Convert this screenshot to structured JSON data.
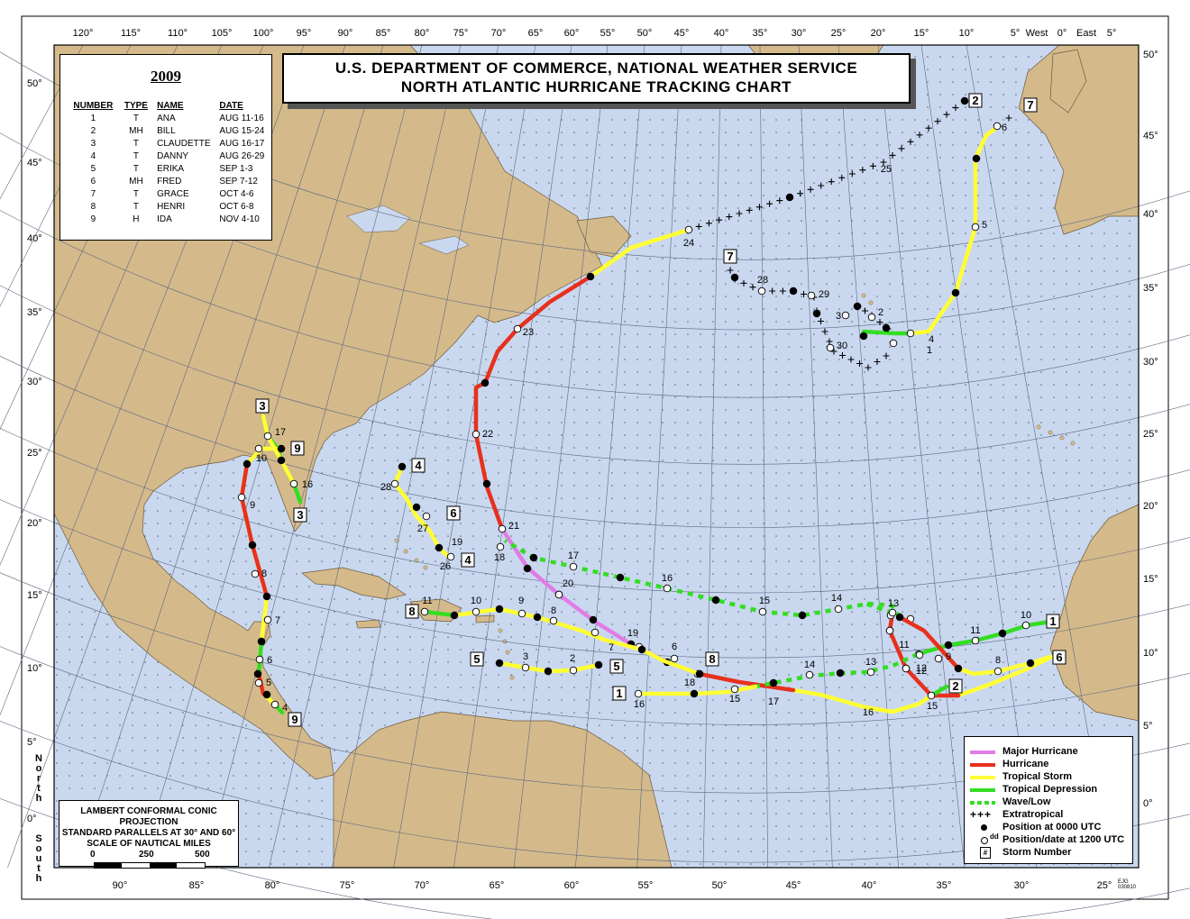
{
  "title": {
    "line1": "U.S. DEPARTMENT OF COMMERCE, NATIONAL WEATHER SERVICE",
    "line2": "NORTH ATLANTIC HURRICANE TRACKING CHART"
  },
  "season": {
    "year": "2009",
    "headers": [
      "NUMBER",
      "TYPE",
      "NAME",
      "DATE"
    ],
    "storms": [
      {
        "number": "1",
        "type": "T",
        "name": "ANA",
        "date": "AUG 11-16"
      },
      {
        "number": "2",
        "type": "MH",
        "name": "BILL",
        "date": "AUG 15-24"
      },
      {
        "number": "3",
        "type": "T",
        "name": "CLAUDETTE",
        "date": "AUG 16-17"
      },
      {
        "number": "4",
        "type": "T",
        "name": "DANNY",
        "date": "AUG 26-29"
      },
      {
        "number": "5",
        "type": "T",
        "name": "ERIKA",
        "date": "SEP 1-3"
      },
      {
        "number": "6",
        "type": "MH",
        "name": "FRED",
        "date": "SEP 7-12"
      },
      {
        "number": "7",
        "type": "T",
        "name": "GRACE",
        "date": "OCT 4-6"
      },
      {
        "number": "8",
        "type": "T",
        "name": "HENRI",
        "date": "OCT 6-8"
      },
      {
        "number": "9",
        "type": "H",
        "name": "IDA",
        "date": "NOV 4-10"
      }
    ]
  },
  "legend": {
    "major_hurricane": "Major Hurricane",
    "hurricane": "Hurricane",
    "tropical_storm": "Tropical Storm",
    "tropical_depression": "Tropical Depression",
    "wave_low": "Wave/Low",
    "extratropical": "Extratropical",
    "pos_0000": "Position at 0000 UTC",
    "pos_1200": "Position/date at 1200 UTC",
    "pos_1200_marker": "dd",
    "storm_number": "Storm Number",
    "storm_number_marker": "#"
  },
  "colors": {
    "major_hurricane": "#e07ce6",
    "hurricane": "#e8301c",
    "tropical_storm": "#ffff33",
    "tropical_depression": "#33dd22",
    "wave_low": "#33dd22",
    "extratropical": "#000000",
    "ocean": "#c9d8ef",
    "land": "#d4b98b",
    "lake": "#c9d8ef"
  },
  "projection": {
    "line1": "LAMBERT CONFORMAL CONIC PROJECTION",
    "line2": "STANDARD PARALLELS AT 30° AND 60°",
    "line3": "SCALE OF NAUTICAL MILES",
    "scale_ticks": [
      "0",
      "250",
      "500"
    ]
  },
  "lon_top": [
    "120°",
    "115°",
    "110°",
    "105°",
    "100°",
    "95°",
    "90°",
    "85°",
    "80°",
    "75°",
    "70°",
    "65°",
    "60°",
    "55°",
    "50°",
    "45°",
    "40°",
    "35°",
    "30°",
    "25°",
    "20°",
    "15°",
    "10°",
    "5°",
    "West",
    "0°",
    "East",
    "5°"
  ],
  "lon_bottom": [
    "90°",
    "85°",
    "80°",
    "75°",
    "70°",
    "65°",
    "60°",
    "55°",
    "50°",
    "45°",
    "40°",
    "35°",
    "30°",
    "25°"
  ],
  "lat_left": [
    "50°",
    "45°",
    "40°",
    "35°",
    "30°",
    "25°",
    "20°",
    "15°",
    "10°",
    "5°",
    "0°"
  ],
  "lat_right": [
    "50°",
    "45°",
    "40°",
    "35°",
    "30°",
    "25°",
    "20°",
    "15°",
    "10°",
    "5°",
    "0°"
  ],
  "side_labels": {
    "north": "North",
    "south": "South"
  },
  "stamp": [
    "EJG",
    "030810"
  ],
  "tracks": [
    {
      "storm": "1",
      "start_marker": "1",
      "end_marker": "1",
      "days": [
        "10",
        "11",
        "12",
        "13",
        "14",
        "15",
        "16"
      ]
    },
    {
      "storm": "2",
      "start_marker": "2",
      "end_marker": "2",
      "days": [
        "15",
        "16",
        "17",
        "18",
        "19",
        "20",
        "21",
        "22",
        "23",
        "24"
      ]
    },
    {
      "storm": "3",
      "start_marker": "3",
      "end_marker": "3",
      "days": [
        "16",
        "17"
      ]
    },
    {
      "storm": "4",
      "start_marker": "4",
      "end_marker": "4",
      "days": [
        "26",
        "27",
        "28"
      ]
    },
    {
      "storm": "5",
      "start_marker": "5",
      "end_marker": "5",
      "days": [
        "2",
        "3"
      ]
    },
    {
      "storm": "6",
      "start_marker": "6",
      "end_marker": "6",
      "days": [
        "8",
        "9",
        "11",
        "12",
        "13",
        "14",
        "15",
        "16",
        "17",
        "18",
        "19"
      ]
    },
    {
      "storm": "7",
      "start_marker": "7",
      "end_marker": "7",
      "days": [
        "1",
        "2",
        "3",
        "4",
        "5",
        "6",
        "25",
        "28",
        "29",
        "30"
      ]
    },
    {
      "storm": "8",
      "start_marker": "8",
      "end_marker": "8",
      "days": [
        "6",
        "7",
        "8",
        "9",
        "10",
        "11"
      ]
    },
    {
      "storm": "9",
      "start_marker": "9",
      "end_marker": "9",
      "days": [
        "4",
        "5",
        "6",
        "7",
        "8",
        "9",
        "10"
      ]
    }
  ]
}
